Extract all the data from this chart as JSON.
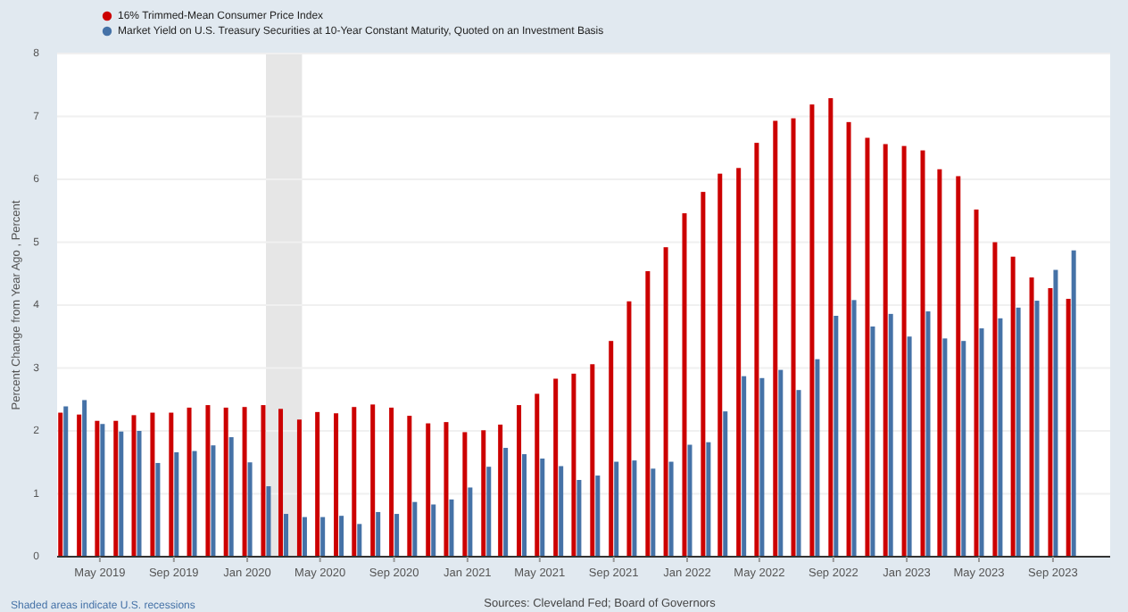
{
  "chart_data": {
    "type": "bar",
    "ylabel": "Percent Change from Year Ago , Percent",
    "x": [
      "2019-03",
      "2019-04",
      "2019-05",
      "2019-06",
      "2019-07",
      "2019-08",
      "2019-09",
      "2019-10",
      "2019-11",
      "2019-12",
      "2020-01",
      "2020-02",
      "2020-03",
      "2020-04",
      "2020-05",
      "2020-06",
      "2020-07",
      "2020-08",
      "2020-09",
      "2020-10",
      "2020-11",
      "2020-12",
      "2021-01",
      "2021-02",
      "2021-03",
      "2021-04",
      "2021-05",
      "2021-06",
      "2021-07",
      "2021-08",
      "2021-09",
      "2021-10",
      "2021-11",
      "2021-12",
      "2022-01",
      "2022-02",
      "2022-03",
      "2022-04",
      "2022-05",
      "2022-06",
      "2022-07",
      "2022-08",
      "2022-09",
      "2022-10",
      "2022-11",
      "2022-12",
      "2023-01",
      "2023-02",
      "2023-03",
      "2023-04",
      "2023-05",
      "2023-06",
      "2023-07",
      "2023-08",
      "2023-09",
      "2023-10"
    ],
    "series": [
      {
        "name": "16% Trimmed-Mean Consumer Price Index",
        "color": "#cc0000",
        "values": [
          2.29,
          2.26,
          2.16,
          2.16,
          2.25,
          2.29,
          2.29,
          2.37,
          2.41,
          2.37,
          2.38,
          2.41,
          2.35,
          2.18,
          2.3,
          2.28,
          2.38,
          2.42,
          2.37,
          2.24,
          2.12,
          2.14,
          1.98,
          2.01,
          2.1,
          2.41,
          2.59,
          2.83,
          2.91,
          3.06,
          3.43,
          4.06,
          4.54,
          4.92,
          5.46,
          5.8,
          6.09,
          6.18,
          6.58,
          6.93,
          6.97,
          7.19,
          7.29,
          6.91,
          6.66,
          6.56,
          6.53,
          6.46,
          6.16,
          6.05,
          5.52,
          5.0,
          4.77,
          4.44,
          4.27,
          4.1
        ]
      },
      {
        "name": "Market Yield on U.S. Treasury Securities at 10-Year Constant Maturity, Quoted on an Investment Basis",
        "color": "#4572a7",
        "values": [
          2.39,
          2.49,
          2.11,
          1.99,
          2.0,
          1.49,
          1.66,
          1.68,
          1.77,
          1.9,
          1.5,
          1.12,
          0.68,
          0.63,
          0.63,
          0.65,
          0.52,
          0.71,
          0.68,
          0.87,
          0.83,
          0.91,
          1.1,
          1.43,
          1.73,
          1.63,
          1.56,
          1.44,
          1.22,
          1.29,
          1.51,
          1.53,
          1.4,
          1.51,
          1.78,
          1.82,
          2.31,
          2.87,
          2.84,
          2.97,
          2.65,
          3.14,
          3.83,
          4.08,
          3.66,
          3.86,
          3.5,
          3.9,
          3.47,
          3.43,
          3.63,
          3.79,
          3.96,
          4.07,
          4.56,
          4.87
        ]
      }
    ],
    "xlim": [
      "2019-02-19",
      "2023-12-05"
    ],
    "xticks": [
      {
        "value": "2019-05",
        "label": "May 2019"
      },
      {
        "value": "2019-09",
        "label": "Sep 2019"
      },
      {
        "value": "2020-01",
        "label": "Jan 2020"
      },
      {
        "value": "2020-05",
        "label": "May 2020"
      },
      {
        "value": "2020-09",
        "label": "Sep 2020"
      },
      {
        "value": "2021-01",
        "label": "Jan 2021"
      },
      {
        "value": "2021-05",
        "label": "May 2021"
      },
      {
        "value": "2021-09",
        "label": "Sep 2021"
      },
      {
        "value": "2022-01",
        "label": "Jan 2022"
      },
      {
        "value": "2022-05",
        "label": "May 2022"
      },
      {
        "value": "2022-09",
        "label": "Sep 2022"
      },
      {
        "value": "2023-01",
        "label": "Jan 2023"
      },
      {
        "value": "2023-05",
        "label": "May 2023"
      },
      {
        "value": "2023-09",
        "label": "Sep 2023"
      }
    ],
    "ylim": [
      0,
      8
    ],
    "yticks": [
      0,
      1,
      2,
      3,
      4,
      5,
      6,
      7,
      8
    ],
    "grid": "y",
    "legend": "top left",
    "bands": [
      {
        "axis": "x",
        "from": "2020-02",
        "to": "2020-04",
        "color": "#e6e6e6"
      }
    ],
    "annotations": [
      "Shaded areas indicate U.S. recessions",
      "Sources: Cleveland Fed; Board of Governors"
    ]
  }
}
